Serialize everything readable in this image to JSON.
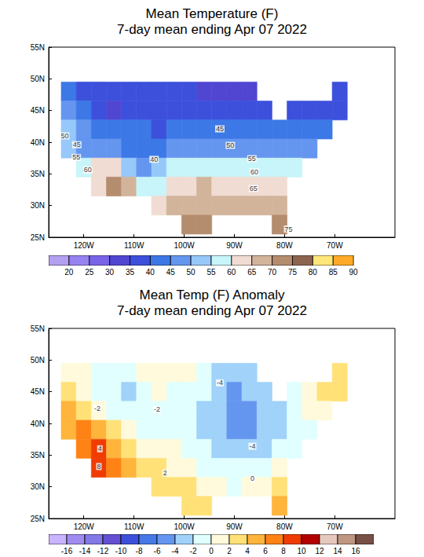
{
  "chart_data": [
    {
      "type": "map",
      "title": "Mean Temperature (F)",
      "subtitle": "7-day mean ending Apr 07 2022",
      "xlim": [
        -127,
        -58
      ],
      "ylim": [
        25,
        55
      ],
      "xticks": [
        {
          "value": -120,
          "label": "120W"
        },
        {
          "value": -110,
          "label": "110W"
        },
        {
          "value": -100,
          "label": "100W"
        },
        {
          "value": -90,
          "label": "90W"
        },
        {
          "value": -80,
          "label": "80W"
        },
        {
          "value": -70,
          "label": "70W"
        }
      ],
      "yticks": [
        {
          "value": 25,
          "label": "25N"
        },
        {
          "value": 30,
          "label": "30N"
        },
        {
          "value": 35,
          "label": "35N"
        },
        {
          "value": 40,
          "label": "40N"
        },
        {
          "value": 45,
          "label": "45N"
        },
        {
          "value": 50,
          "label": "50N"
        },
        {
          "value": 55,
          "label": "55N"
        }
      ],
      "grid": false,
      "lons": [
        -123,
        -120,
        -117,
        -114,
        -111,
        -108,
        -105,
        -102,
        -99,
        -96,
        -93,
        -90,
        -87,
        -84,
        -81,
        -78,
        -75,
        -72,
        -69
      ],
      "lats": [
        48,
        45,
        42,
        39,
        36,
        33,
        30,
        27
      ],
      "cells": [
        [
          43,
          39,
          38,
          36,
          37,
          37,
          37,
          36,
          35,
          33,
          32,
          32,
          33,
          null,
          null,
          null,
          null,
          null,
          36
        ],
        [
          47,
          42,
          38,
          33,
          36,
          38,
          39,
          39,
          38,
          38,
          37,
          37,
          38,
          39,
          null,
          39,
          38,
          38,
          39
        ],
        [
          51,
          45,
          44,
          42,
          41,
          41,
          39,
          44,
          44,
          43,
          42,
          42,
          42,
          41,
          42,
          41,
          42,
          43,
          null
        ],
        [
          54,
          47,
          46,
          45,
          44,
          42,
          40,
          47,
          49,
          48,
          47,
          48,
          47,
          47,
          46,
          47,
          48,
          null,
          null
        ],
        [
          null,
          58,
          62,
          60,
          53,
          49,
          51,
          55,
          57,
          57,
          57,
          57,
          56,
          56,
          56,
          58,
          null,
          null,
          null
        ],
        [
          null,
          null,
          62,
          71,
          66,
          59,
          58,
          61,
          64,
          65,
          64,
          64,
          64,
          63,
          64,
          null,
          null,
          null,
          null
        ],
        [
          null,
          null,
          null,
          null,
          null,
          null,
          64,
          66,
          69,
          68,
          68,
          68,
          67,
          67,
          68,
          null,
          null,
          null,
          null
        ],
        [
          null,
          null,
          null,
          null,
          null,
          null,
          null,
          null,
          72,
          73,
          null,
          null,
          null,
          null,
          74,
          null,
          null,
          null,
          null
        ]
      ],
      "annotations": [
        {
          "text": "50",
          "lon": -123.8,
          "lat": 41.0
        },
        {
          "text": "45",
          "lon": -121.4,
          "lat": 39.6
        },
        {
          "text": "55",
          "lon": -121.5,
          "lat": 37.6
        },
        {
          "text": "60",
          "lon": -119.2,
          "lat": 35.6
        },
        {
          "text": "45",
          "lon": -92.9,
          "lat": 42.1
        },
        {
          "text": "40",
          "lon": -106.0,
          "lat": 37.3
        },
        {
          "text": "50",
          "lon": -90.8,
          "lat": 39.5
        },
        {
          "text": "55",
          "lon": -86.5,
          "lat": 37.4
        },
        {
          "text": "60",
          "lon": -86.0,
          "lat": 35.3
        },
        {
          "text": "65",
          "lon": -86.2,
          "lat": 32.7
        },
        {
          "text": "75",
          "lon": -79.2,
          "lat": 26.3
        }
      ],
      "colorbar": {
        "range": [
          15,
          95
        ],
        "ticks": [
          20,
          25,
          30,
          35,
          40,
          45,
          50,
          55,
          60,
          65,
          70,
          75,
          80,
          85,
          90
        ],
        "colors": [
          "#b4a0f0",
          "#9682f0",
          "#7864e6",
          "#5046d2",
          "#3c50dc",
          "#3c78e6",
          "#6496f0",
          "#96c8fa",
          "#c8f5fa",
          "#f0dcd2",
          "#d2b49b",
          "#b48c6e",
          "#8c6450",
          "#ffe678",
          "#ffaa28",
          "#ff5014",
          "#c00000"
        ]
      }
    },
    {
      "type": "map",
      "title": "Mean Temp (F) Anomaly",
      "subtitle": "7-day mean ending Apr 07 2022",
      "xlim": [
        -127,
        -58
      ],
      "ylim": [
        25,
        55
      ],
      "xticks": [
        {
          "value": -120,
          "label": "120W"
        },
        {
          "value": -110,
          "label": "110W"
        },
        {
          "value": -100,
          "label": "100W"
        },
        {
          "value": -90,
          "label": "90W"
        },
        {
          "value": -80,
          "label": "80W"
        },
        {
          "value": -70,
          "label": "70W"
        }
      ],
      "yticks": [
        {
          "value": 25,
          "label": "25N"
        },
        {
          "value": 30,
          "label": "30N"
        },
        {
          "value": 35,
          "label": "35N"
        },
        {
          "value": 40,
          "label": "40N"
        },
        {
          "value": 45,
          "label": "45N"
        },
        {
          "value": 50,
          "label": "50N"
        },
        {
          "value": 55,
          "label": "55N"
        }
      ],
      "grid": false,
      "lons": [
        -123,
        -120,
        -117,
        -114,
        -111,
        -108,
        -105,
        -102,
        -99,
        -96,
        -93,
        -90,
        -87,
        -84,
        -81,
        -78,
        -75,
        -72,
        -69
      ],
      "lats": [
        48,
        45,
        42,
        39,
        36,
        33,
        30,
        27
      ],
      "cells": [
        [
          1,
          0,
          -1,
          -1,
          -1,
          0,
          1,
          1,
          0,
          -2,
          -3,
          -4,
          -3,
          null,
          null,
          null,
          null,
          null,
          3
        ],
        [
          3,
          1,
          -1,
          -2,
          -3,
          -1,
          0,
          -1,
          -1,
          -2,
          -4,
          -5,
          -4,
          -3,
          null,
          -1,
          1,
          2,
          3
        ],
        [
          4,
          3,
          1,
          -1,
          -2,
          -1,
          -1,
          -1,
          -2,
          -3,
          -4,
          -5,
          -5,
          -4,
          -3,
          -2,
          0,
          1,
          null
        ],
        [
          4,
          6,
          5,
          3,
          1,
          -1,
          -1,
          -1,
          -2,
          -3,
          -4,
          -5,
          -5,
          -4,
          -3,
          -2,
          -1,
          null,
          null
        ],
        [
          null,
          7,
          8,
          5,
          3,
          1,
          1,
          0,
          -1,
          -2,
          -3,
          -4,
          -4,
          -3,
          -2,
          -1,
          null,
          null,
          null
        ],
        [
          null,
          null,
          8,
          6,
          4,
          3,
          2,
          1,
          0,
          -1,
          -2,
          -2,
          -1,
          -1,
          0,
          null,
          null,
          null,
          null
        ],
        [
          null,
          null,
          null,
          null,
          null,
          null,
          3,
          3,
          2,
          1,
          0,
          -1,
          0,
          1,
          2,
          null,
          null,
          null,
          null
        ],
        [
          null,
          null,
          null,
          null,
          null,
          null,
          null,
          null,
          3,
          2,
          null,
          null,
          null,
          null,
          4,
          null,
          null,
          null,
          null
        ]
      ],
      "annotations": [
        {
          "text": "-2",
          "lon": -117.3,
          "lat": 42.4
        },
        {
          "text": "-4",
          "lon": -92.9,
          "lat": 46.4
        },
        {
          "text": "-2",
          "lon": -105.4,
          "lat": 42.2
        },
        {
          "text": "4",
          "lon": -116.8,
          "lat": 36.0
        },
        {
          "text": "8",
          "lon": -117.0,
          "lat": 33.2
        },
        {
          "text": "2",
          "lon": -103.8,
          "lat": 32.2
        },
        {
          "text": "-4",
          "lon": -86.4,
          "lat": 36.4
        },
        {
          "text": "0",
          "lon": -86.4,
          "lat": 31.3
        }
      ],
      "colorbar": {
        "range": [
          -18,
          18
        ],
        "ticks": [
          -16,
          -14,
          -12,
          -10,
          -8,
          -6,
          -4,
          -2,
          0,
          2,
          4,
          6,
          8,
          10,
          12,
          14,
          16
        ],
        "colors": [
          "#c8b4ff",
          "#a08cf0",
          "#8278e6",
          "#6450d2",
          "#3c50dc",
          "#4678e6",
          "#6496f0",
          "#a0d2fa",
          "#e1ffff",
          "#fffadc",
          "#ffe178",
          "#ffb43c",
          "#ff8214",
          "#f03c00",
          "#b40000",
          "#e6c8be",
          "#be9682",
          "#785046"
        ]
      }
    }
  ]
}
